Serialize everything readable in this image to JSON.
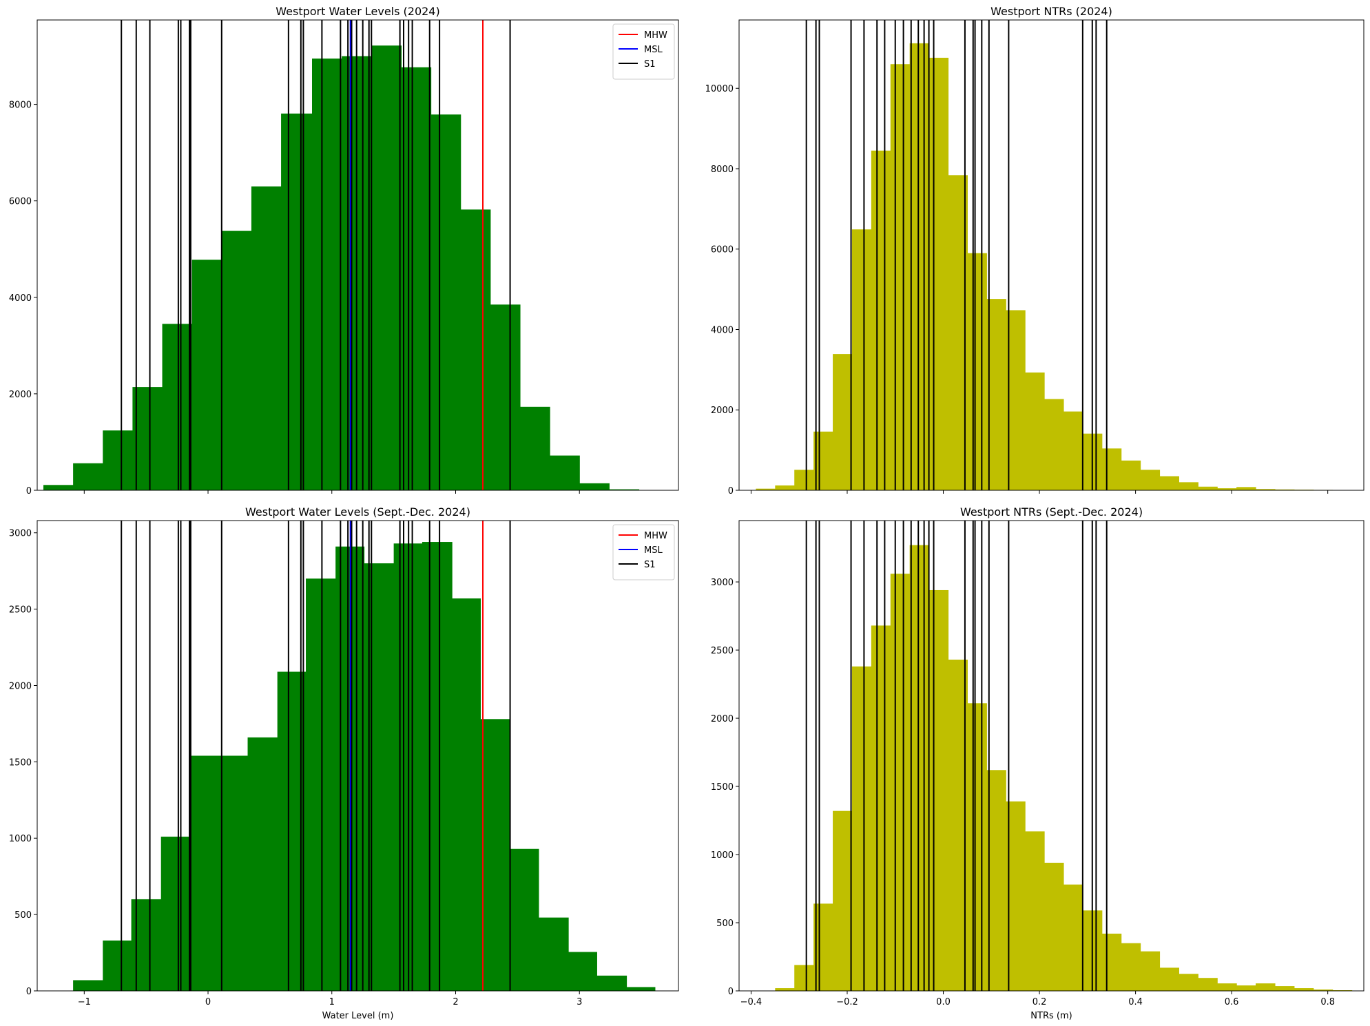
{
  "colors": {
    "wl": "#008000",
    "ntr": "#bfbf00",
    "mhw": "#ff0000",
    "msl": "#0000ff",
    "s1": "#000000"
  },
  "chart_data": [
    {
      "type": "bar",
      "title": "Westport Water Levels (2024)",
      "xlabel": "",
      "xlim": [
        -1.38,
        3.8
      ],
      "ylim": [
        0,
        9750
      ],
      "xticks": [
        -1,
        0,
        1,
        2,
        3
      ],
      "xtick_labels": [],
      "yticks": [
        0,
        2000,
        4000,
        6000,
        8000
      ],
      "yticks_labels": [
        "0",
        "2000",
        "4000",
        "6000",
        "8000"
      ],
      "color": "wl",
      "bin_edges": [
        -1.33,
        -1.09,
        -0.85,
        -0.61,
        -0.37,
        -0.13,
        0.11,
        0.35,
        0.59,
        0.84,
        1.08,
        1.32,
        1.56,
        1.8,
        2.04,
        2.28,
        2.52,
        2.76,
        3.0,
        3.24,
        3.48
      ],
      "counts": [
        110,
        560,
        1240,
        2140,
        3450,
        4780,
        5380,
        6300,
        7810,
        8950,
        9000,
        9220,
        8770,
        7790,
        5820,
        3850,
        1730,
        720,
        145,
        20
      ],
      "legend": {
        "loc": "upper right",
        "entries": [
          "MHW",
          "MSL",
          "S1"
        ]
      },
      "vlines": {
        "MHW": 2.22,
        "MSL": 1.15,
        "S1": [
          -0.7,
          -0.58,
          -0.47,
          -0.24,
          -0.22,
          -0.15,
          -0.14,
          0.11,
          0.65,
          0.75,
          0.77,
          0.92,
          1.07,
          1.13,
          1.16,
          1.2,
          1.25,
          1.3,
          1.32,
          1.55,
          1.58,
          1.62,
          1.65,
          1.79,
          1.87,
          2.44
        ]
      }
    },
    {
      "type": "bar",
      "title": "Westport NTRs (2024)",
      "xlabel": "",
      "xlim": [
        -0.425,
        0.875
      ],
      "ylim": [
        0,
        11700
      ],
      "xticks": [
        -0.4,
        -0.2,
        0.0,
        0.2,
        0.4,
        0.6,
        0.8
      ],
      "xtick_labels": [],
      "yticks": [
        0,
        2000,
        4000,
        6000,
        8000,
        10000
      ],
      "yticks_labels": [
        "0",
        "2000",
        "4000",
        "6000",
        "8000",
        "10000"
      ],
      "color": "ntr",
      "bin_edges": [
        -0.39,
        -0.35,
        -0.31,
        -0.27,
        -0.23,
        -0.19,
        -0.15,
        -0.11,
        -0.07,
        -0.03,
        0.01,
        0.05,
        0.09,
        0.13,
        0.17,
        0.21,
        0.25,
        0.29,
        0.33,
        0.37,
        0.41,
        0.45,
        0.49,
        0.53,
        0.57,
        0.61,
        0.65,
        0.69,
        0.73,
        0.77,
        0.81
      ],
      "counts": [
        40,
        120,
        510,
        1460,
        3390,
        6490,
        8450,
        10600,
        11120,
        10760,
        7840,
        5900,
        4760,
        4480,
        2930,
        2270,
        1960,
        1410,
        1040,
        740,
        510,
        350,
        200,
        90,
        50,
        80,
        30,
        20,
        15,
        10
      ],
      "legend": null,
      "vlines": {
        "S1": [
          -0.285,
          -0.265,
          -0.258,
          -0.192,
          -0.165,
          -0.138,
          -0.122,
          -0.1,
          -0.083,
          -0.067,
          -0.052,
          -0.04,
          -0.03,
          -0.02,
          0.045,
          0.062,
          0.066,
          0.08,
          0.095,
          0.136,
          0.29,
          0.31,
          0.318,
          0.34
        ]
      }
    },
    {
      "type": "bar",
      "title": "Westport Water Levels (Sept.-Dec. 2024)",
      "xlabel": "Water Level (m)",
      "xlim": [
        -1.38,
        3.8
      ],
      "ylim": [
        0,
        3080
      ],
      "xticks": [
        -1,
        0,
        1,
        2,
        3
      ],
      "xtick_labels": [
        "−1",
        "0",
        "1",
        "2",
        "3"
      ],
      "yticks": [
        0,
        500,
        1000,
        1500,
        2000,
        2500,
        3000
      ],
      "yticks_labels": [
        "0",
        "500",
        "1000",
        "1500",
        "2000",
        "2500",
        "3000"
      ],
      "color": "wl",
      "bin_edges": [
        -1.09,
        -0.85,
        -0.62,
        -0.38,
        -0.15,
        0.09,
        0.32,
        0.56,
        0.79,
        1.03,
        1.26,
        1.5,
        1.73,
        1.97,
        2.2,
        2.44,
        2.67,
        2.91,
        3.14,
        3.38,
        3.61
      ],
      "counts": [
        70,
        330,
        600,
        1010,
        1540,
        1540,
        1660,
        2090,
        2700,
        2910,
        2800,
        2930,
        2940,
        2570,
        1780,
        930,
        480,
        255,
        100,
        25
      ],
      "legend": {
        "loc": "upper right",
        "entries": [
          "MHW",
          "MSL",
          "S1"
        ]
      },
      "vlines": {
        "MHW": 2.22,
        "MSL": 1.15,
        "S1": [
          -0.7,
          -0.58,
          -0.47,
          -0.24,
          -0.22,
          -0.15,
          -0.14,
          0.11,
          0.65,
          0.75,
          0.77,
          0.92,
          1.07,
          1.13,
          1.16,
          1.2,
          1.25,
          1.3,
          1.32,
          1.55,
          1.58,
          1.62,
          1.65,
          1.79,
          1.87,
          2.44
        ]
      }
    },
    {
      "type": "bar",
      "title": "Westport NTRs (Sept.-Dec. 2024)",
      "xlabel": "NTRs (m)",
      "xlim": [
        -0.425,
        0.875
      ],
      "ylim": [
        0,
        3450
      ],
      "xticks": [
        -0.4,
        -0.2,
        0.0,
        0.2,
        0.4,
        0.6,
        0.8
      ],
      "xtick_labels": [
        "−0.4",
        "−0.2",
        "0.0",
        "0.2",
        "0.4",
        "0.6",
        "0.8"
      ],
      "yticks": [
        0,
        500,
        1000,
        1500,
        2000,
        2500,
        3000
      ],
      "yticks_labels": [
        "0",
        "500",
        "1000",
        "1500",
        "2000",
        "2500",
        "3000"
      ],
      "color": "ntr",
      "bin_edges": [
        -0.35,
        -0.31,
        -0.27,
        -0.23,
        -0.19,
        -0.15,
        -0.11,
        -0.07,
        -0.03,
        0.01,
        0.05,
        0.09,
        0.13,
        0.17,
        0.21,
        0.25,
        0.29,
        0.33,
        0.37,
        0.41,
        0.45,
        0.49,
        0.53,
        0.57,
        0.61,
        0.65,
        0.69,
        0.73,
        0.77,
        0.81,
        0.85
      ],
      "counts": [
        20,
        190,
        640,
        1320,
        2380,
        2680,
        3060,
        3270,
        2940,
        2430,
        2110,
        1620,
        1390,
        1170,
        940,
        780,
        590,
        420,
        350,
        290,
        170,
        125,
        95,
        55,
        40,
        55,
        35,
        20,
        10,
        5
      ],
      "legend": null,
      "vlines": {
        "S1": [
          -0.285,
          -0.265,
          -0.258,
          -0.192,
          -0.165,
          -0.138,
          -0.122,
          -0.1,
          -0.083,
          -0.067,
          -0.052,
          -0.04,
          -0.03,
          -0.02,
          0.045,
          0.062,
          0.066,
          0.08,
          0.095,
          0.136,
          0.29,
          0.31,
          0.318,
          0.34
        ]
      }
    }
  ]
}
